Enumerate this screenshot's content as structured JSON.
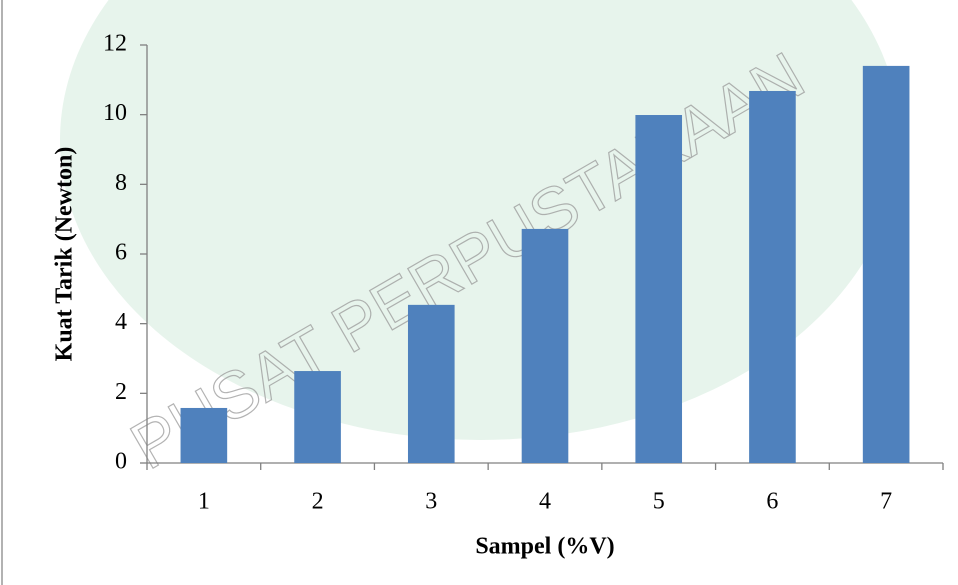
{
  "chart_data": {
    "type": "bar",
    "watermark": "PUSAT PERPUSTAKAAN",
    "x_label": "Sampel (%V)",
    "y_label": "Kuat Tarik (Newton)",
    "categories": [
      "1",
      "2",
      "3",
      "4",
      "5",
      "6",
      "7"
    ],
    "values": [
      1.58,
      2.64,
      4.54,
      6.72,
      9.99,
      10.68,
      11.4
    ],
    "color": "#4f81bd",
    "ylim": [
      0,
      12
    ],
    "yticks": [
      0,
      2,
      4,
      6,
      8,
      10,
      12
    ],
    "grid": false
  }
}
